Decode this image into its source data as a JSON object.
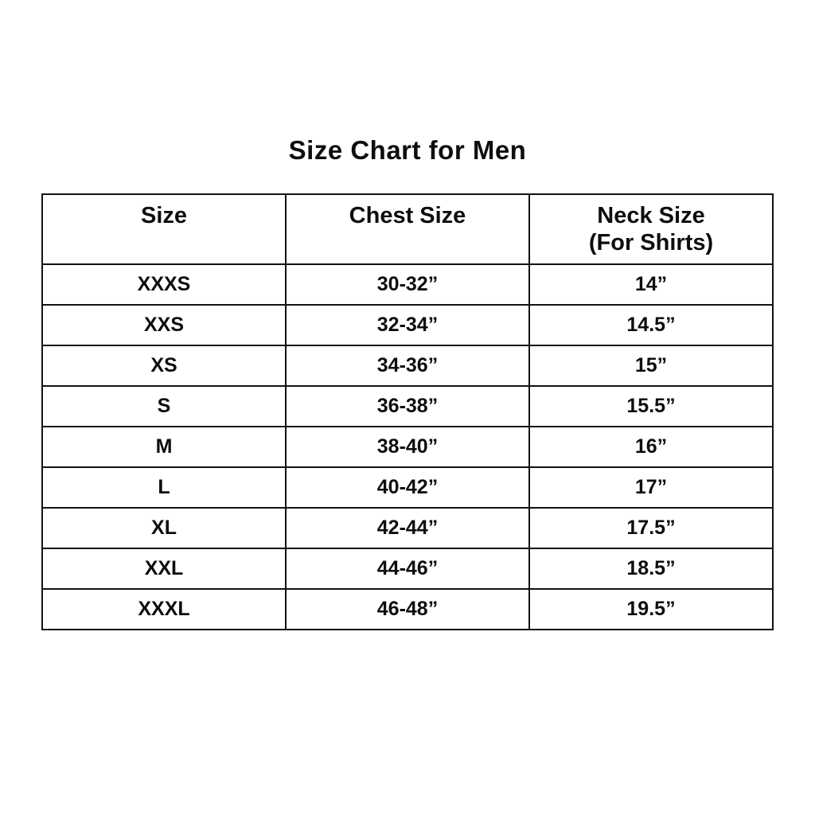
{
  "title": "Size Chart for Men",
  "table": {
    "border_color": "#121212",
    "background_color": "#ffffff",
    "text_color": "#0d0d0d",
    "header": {
      "columns": [
        {
          "line1": "Size",
          "line2": ""
        },
        {
          "line1": "Chest Size",
          "line2": ""
        },
        {
          "line1": "Neck Size",
          "line2": "(For Shirts)"
        }
      ]
    },
    "rows": [
      {
        "size": "XXXS",
        "chest": "30-32”",
        "neck": "14”"
      },
      {
        "size": "XXS",
        "chest": "32-34”",
        "neck": "14.5”"
      },
      {
        "size": "XS",
        "chest": "34-36”",
        "neck": "15”"
      },
      {
        "size": "S",
        "chest": "36-38”",
        "neck": "15.5”"
      },
      {
        "size": "M",
        "chest": "38-40”",
        "neck": "16”"
      },
      {
        "size": "L",
        "chest": "40-42”",
        "neck": "17”"
      },
      {
        "size": "XL",
        "chest": "42-44”",
        "neck": "17.5”"
      },
      {
        "size": "XXL",
        "chest": "44-46”",
        "neck": "18.5”"
      },
      {
        "size": "XXXL",
        "chest": "46-48”",
        "neck": "19.5”"
      }
    ]
  },
  "chart_data": {
    "type": "table",
    "title": "Size Chart for Men",
    "columns": [
      "Size",
      "Chest Size",
      "Neck Size (For Shirts)"
    ],
    "rows": [
      [
        "XXXS",
        "30-32”",
        "14”"
      ],
      [
        "XXS",
        "32-34”",
        "14.5”"
      ],
      [
        "XS",
        "34-36”",
        "15”"
      ],
      [
        "S",
        "36-38”",
        "15.5”"
      ],
      [
        "M",
        "38-40”",
        "16”"
      ],
      [
        "L",
        "40-42”",
        "17”"
      ],
      [
        "XL",
        "42-44”",
        "17.5”"
      ],
      [
        "XXL",
        "44-46”",
        "18.5”"
      ],
      [
        "XXXL",
        "46-48”",
        "19.5”"
      ]
    ],
    "units": "inches",
    "legend_position": "none",
    "grid": true
  }
}
